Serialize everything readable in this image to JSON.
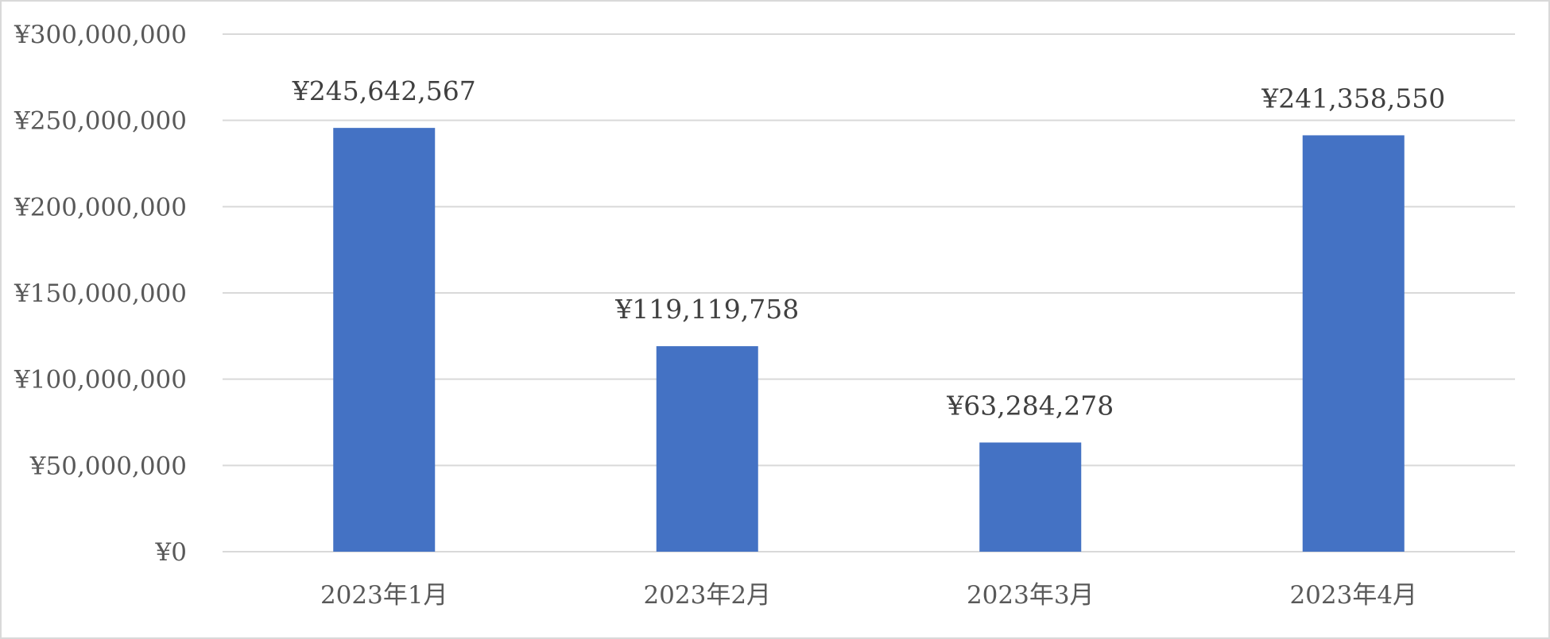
{
  "chart_data": {
    "type": "bar",
    "title": "",
    "xlabel": "",
    "ylabel": "",
    "categories": [
      "2023年1月",
      "2023年2月",
      "2023年3月",
      "2023年4月"
    ],
    "values": [
      245642567,
      119119758,
      63284278,
      241358550
    ],
    "data_labels": [
      "¥245,642,567",
      "¥119,119,758",
      "¥63,284,278",
      "¥241,358,550"
    ],
    "ylim": [
      0,
      300000000
    ],
    "yticks": [
      0,
      50000000,
      100000000,
      150000000,
      200000000,
      250000000,
      300000000
    ],
    "ytick_labels": [
      "¥0",
      "¥50,000,000",
      "¥100,000,000",
      "¥150,000,000",
      "¥200,000,000",
      "¥250,000,000",
      "¥300,000,000"
    ],
    "grid": true,
    "legend": "none",
    "bar_color": "#4472c4"
  }
}
